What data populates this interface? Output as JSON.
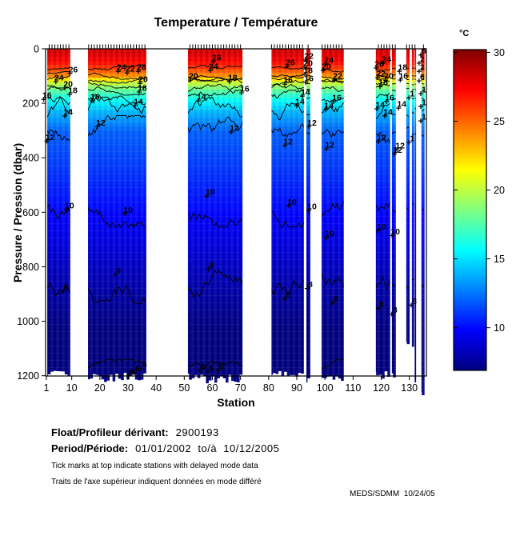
{
  "chart_data": {
    "type": "heatmap",
    "title": "Temperature / Température",
    "xlabel": "Station",
    "ylabel": "Pressure / Pression (dbar)",
    "xlim": [
      1,
      136
    ],
    "ylim": [
      0,
      1200
    ],
    "y_axis_reversed": true,
    "x_ticks": [
      1,
      10,
      20,
      30,
      40,
      50,
      60,
      70,
      80,
      90,
      100,
      110,
      120,
      130
    ],
    "y_ticks": [
      0,
      200,
      400,
      600,
      800,
      1000,
      1200
    ],
    "colorbar": {
      "label": "°C",
      "ticks": [
        30,
        25,
        20,
        15,
        10
      ],
      "min": 6.9,
      "max": 30.2,
      "colormap": "jet"
    },
    "temperature_profile": {
      "pressure": [
        0,
        40,
        72,
        98,
        112,
        128,
        150,
        182,
        232,
        305,
        585,
        860,
        1170,
        1260
      ],
      "temp": [
        28.5,
        27.5,
        26,
        24,
        22,
        20,
        18,
        16,
        14,
        12,
        10,
        8,
        6,
        5.7
      ]
    },
    "contour_levels": [
      6,
      8,
      10,
      12,
      14,
      16,
      18,
      20,
      22,
      24,
      26
    ],
    "contour_level_pressure": {
      "26": 72,
      "24": 98,
      "22": 112,
      "20": 128,
      "18": 150,
      "16": 182,
      "14": 232,
      "12": 305,
      "10": 585,
      "8": 860,
      "6": 1170
    },
    "station_groups": [
      {
        "s0": 1.3,
        "s1": 9.5,
        "max_p": 1200
      },
      {
        "s0": 15.8,
        "s1": 36.5,
        "max_p": 1205
      },
      {
        "s0": 51.3,
        "s1": 70.7,
        "max_p": 1210
      },
      {
        "s0": 81.0,
        "s1": 92.5,
        "max_p": 1195
      },
      {
        "s0": 93.4,
        "s1": 94.8,
        "max_p": 1215
      },
      {
        "s0": 98.8,
        "s1": 106.7,
        "max_p": 1210
      },
      {
        "s0": 118.1,
        "s1": 123.2,
        "max_p": 1200
      },
      {
        "s0": 123.8,
        "s1": 125.2,
        "max_p": 1190
      },
      {
        "s0": 128.9,
        "s1": 130.1,
        "max_p": 1090
      },
      {
        "s0": 130.9,
        "s1": 131.7,
        "max_p": 1085
      },
      {
        "s0": 131.9,
        "s1": 132.4,
        "max_p": 1210
      },
      {
        "s0": 134.3,
        "s1": 135.4,
        "max_p": 1255
      }
    ],
    "contour_labels": [
      [
        "26",
        10.5,
        76
      ],
      [
        "24",
        5.5,
        106
      ],
      [
        "20",
        8.7,
        129
      ],
      [
        "18",
        10.4,
        153
      ],
      [
        "16",
        1.2,
        171
      ],
      [
        "14",
        8.7,
        232
      ],
      [
        "12",
        2.3,
        324
      ],
      [
        "10",
        9.2,
        576
      ],
      [
        "8",
        8.1,
        876
      ],
      [
        "24",
        27.7,
        68
      ],
      [
        "22",
        30.8,
        74
      ],
      [
        "26",
        34.8,
        68
      ],
      [
        "20",
        35.4,
        112
      ],
      [
        "18",
        35.1,
        144
      ],
      [
        "16",
        18.3,
        176
      ],
      [
        "14",
        33.7,
        194
      ],
      [
        "12",
        20.3,
        271
      ],
      [
        "10",
        30,
        591
      ],
      [
        "8",
        26.6,
        815
      ],
      [
        "6",
        31.4,
        1185
      ],
      [
        "6",
        33.4,
        1173
      ],
      [
        "6",
        35.9,
        1159
      ],
      [
        "26",
        61.5,
        32
      ],
      [
        "24",
        60.4,
        65
      ],
      [
        "20",
        53.3,
        100
      ],
      [
        "18",
        67.2,
        106
      ],
      [
        "16",
        71.5,
        147
      ],
      [
        "14",
        56.1,
        176
      ],
      [
        "12",
        67.8,
        291
      ],
      [
        "10",
        59.2,
        526
      ],
      [
        "8",
        59.8,
        794
      ],
      [
        "6",
        56.7,
        1165
      ],
      [
        "6",
        59.5,
        1171
      ],
      [
        "6",
        63.2,
        1165
      ],
      [
        "26",
        87.7,
        50
      ],
      [
        "22",
        94.3,
        26
      ],
      [
        "20",
        94,
        53
      ],
      [
        "18",
        94,
        79
      ],
      [
        "16",
        94.3,
        109
      ],
      [
        "16",
        86.9,
        115
      ],
      [
        "14",
        93.1,
        159
      ],
      [
        "14",
        91.1,
        194
      ],
      [
        "12",
        95.4,
        271
      ],
      [
        "12",
        86.9,
        341
      ],
      [
        "10",
        88.3,
        562
      ],
      [
        "10",
        95.4,
        579
      ],
      [
        "8",
        94.8,
        865
      ],
      [
        "8",
        86.9,
        903
      ],
      [
        "24",
        101.4,
        41
      ],
      [
        "20",
        100.5,
        65
      ],
      [
        "22",
        104.5,
        100
      ],
      [
        "16",
        104.2,
        179
      ],
      [
        "14",
        101.4,
        209
      ],
      [
        "12",
        101.7,
        353
      ],
      [
        "10",
        101.7,
        679
      ],
      [
        "8",
        103.9,
        918
      ],
      [
        "26",
        119.3,
        56
      ],
      [
        "24",
        121.9,
        38
      ],
      [
        "22",
        119.9,
        91
      ],
      [
        "20",
        122.7,
        100
      ],
      [
        "18",
        120.7,
        124
      ],
      [
        "16",
        123,
        179
      ],
      [
        "14",
        119.6,
        206
      ],
      [
        "14",
        122.4,
        232
      ],
      [
        "12",
        120.1,
        326
      ],
      [
        "12",
        125.8,
        371
      ],
      [
        "10",
        120.1,
        653
      ],
      [
        "10",
        125,
        671
      ],
      [
        "8",
        120.1,
        938
      ],
      [
        "8",
        124.9,
        959
      ],
      [
        "8",
        131.8,
        926
      ],
      [
        "18",
        127.6,
        68
      ],
      [
        "16",
        127.9,
        100
      ],
      [
        "14",
        127.3,
        203
      ],
      [
        "12",
        126.7,
        356
      ],
      [
        "1",
        131,
        165
      ],
      [
        "1",
        131,
        329
      ],
      [
        "8",
        135.2,
        8
      ],
      [
        "2",
        134.6,
        38
      ],
      [
        "2",
        134.6,
        68
      ],
      [
        "6",
        134.6,
        103
      ],
      [
        "1",
        135.2,
        150
      ],
      [
        "1",
        135.2,
        197
      ],
      [
        "1",
        135.2,
        250
      ]
    ]
  },
  "annotations": {
    "float_label": "Float/Profileur dérivant:",
    "float_value": "2900193",
    "period_label": "Period/Période:",
    "period_value": "01/01/2002  to/à  10/12/2005",
    "note_en": "Tick marks at top indicate stations with delayed mode data",
    "note_fr": "Traits de l'axe supérieur indiquent données en mode différé",
    "credit": "MEDS/SDMM  10/24/05"
  }
}
